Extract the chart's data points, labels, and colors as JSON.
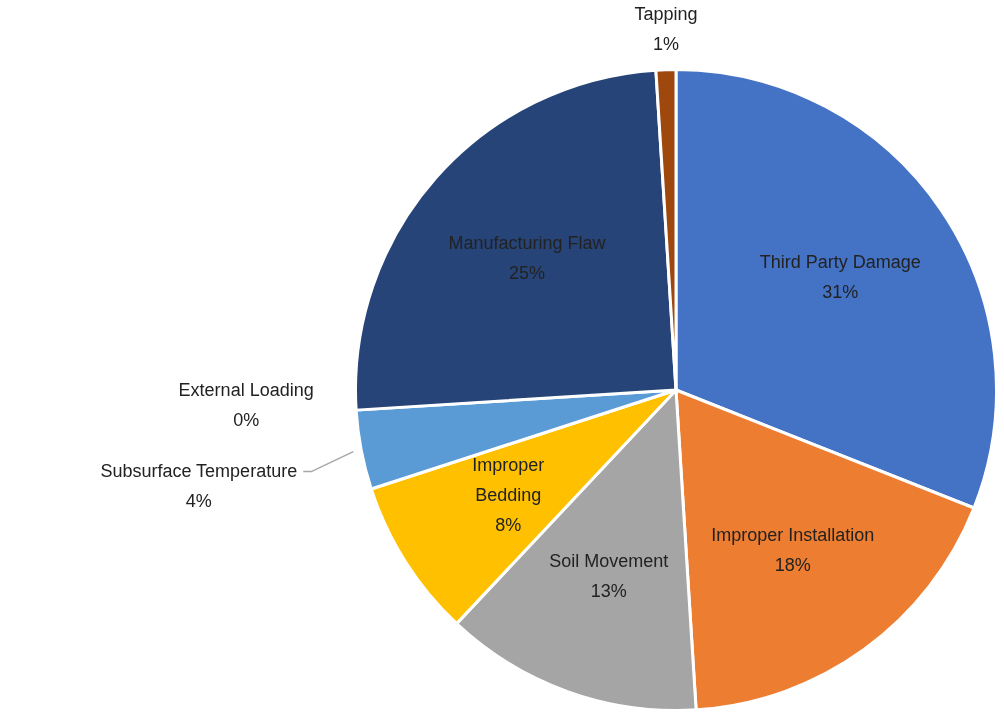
{
  "chart_data": {
    "type": "pie",
    "categories": [
      "Third Party Damage",
      "Improper Installation",
      "Soil Movement",
      "Improper Bedding",
      "Subsurface Temperature",
      "External Loading",
      "Manufacturing Flaw",
      "Tapping"
    ],
    "values": [
      31,
      18,
      13,
      8,
      4,
      0,
      25,
      1
    ],
    "value_labels": [
      "31%",
      "18%",
      "13%",
      "8%",
      "4%",
      "0%",
      "25%",
      "1%"
    ],
    "colors": [
      "#4472c4",
      "#ed7d31",
      "#a5a5a5",
      "#ffc000",
      "#5b9bd5",
      "#70ad47",
      "#264478",
      "#9e480e"
    ],
    "legend": false
  }
}
